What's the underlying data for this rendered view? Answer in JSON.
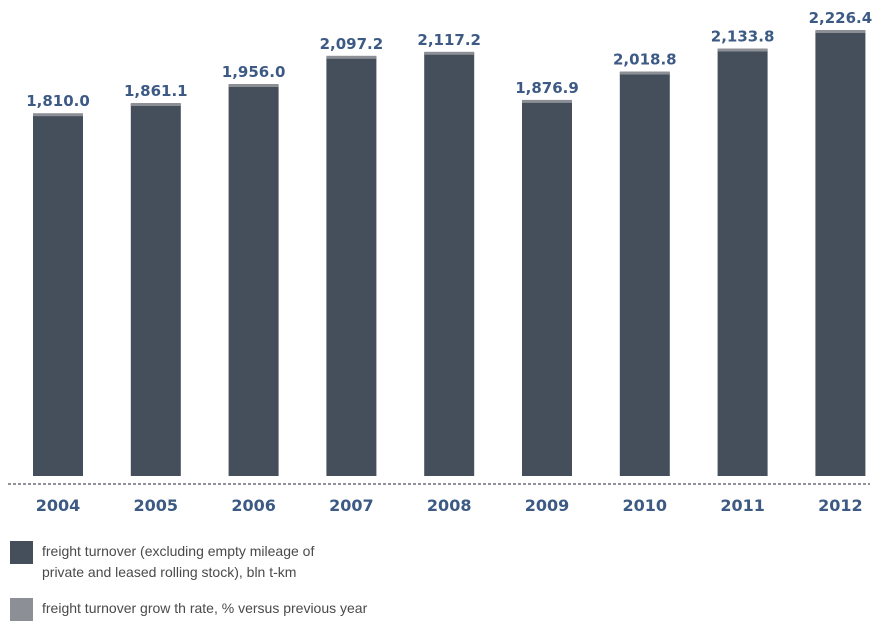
{
  "chart_data": {
    "type": "bar",
    "categories": [
      "2004",
      "2005",
      "2006",
      "2007",
      "2008",
      "2009",
      "2010",
      "2011",
      "2012"
    ],
    "series": [
      {
        "name": "freight turnover (excluding empty mileage of private and leased rolling stock), bln t-km",
        "color": "#454f5b",
        "values": [
          1810.0,
          1861.1,
          1956.0,
          2097.2,
          2117.2,
          1876.9,
          2018.8,
          2133.8,
          2226.4
        ]
      },
      {
        "name": "freight turnover grow th rate, % versus previous year",
        "color": "#8c9096"
      }
    ],
    "value_labels": [
      "1,810.0",
      "1,861.1",
      "1,956.0",
      "2,097.2",
      "2,117.2",
      "1,876.9",
      "2,018.8",
      "2,133.8",
      "2,226.4"
    ],
    "ylim": [
      0,
      2226.4
    ],
    "grid": false,
    "legend_position": "bottom-left",
    "label_color": "#3d5a85"
  },
  "legend": {
    "items": [
      {
        "text": "freight turnover (excluding empty mileage of\nprivate and leased rolling stock), bln t-km",
        "color": "#454f5b"
      },
      {
        "text": "freight turnover grow th rate, % versus previous year",
        "color": "#8c9096"
      }
    ]
  }
}
